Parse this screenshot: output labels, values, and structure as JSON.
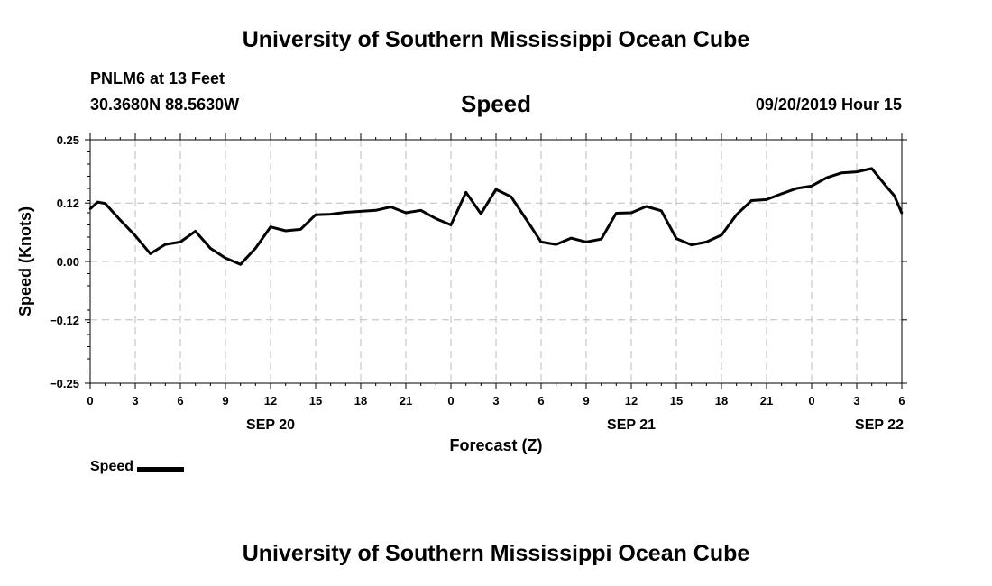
{
  "header": {
    "title": "University of Southern Mississippi Ocean Cube",
    "station": "PNLM6 at 13 Feet",
    "coords": "30.3680N 88.5630W",
    "variable": "Speed",
    "datetime": "09/20/2019 Hour 15"
  },
  "footer": {
    "title": "University of Southern Mississippi Ocean Cube"
  },
  "legend": {
    "label": "Speed"
  },
  "chart_data": {
    "type": "line",
    "title": "Speed",
    "xlabel": "Forecast (Z)",
    "ylabel": "Speed (Knots)",
    "ylim": [
      -0.25,
      0.25
    ],
    "xlim": [
      0,
      54
    ],
    "y_ticks": [
      0.25,
      0.12,
      0.0,
      -0.12,
      -0.25
    ],
    "y_tick_labels": [
      "0.25",
      "0.12",
      "0.00",
      "−0.12",
      "−0.25"
    ],
    "x_ticks": [
      0,
      3,
      6,
      9,
      12,
      15,
      18,
      21,
      24,
      27,
      30,
      33,
      36,
      39,
      42,
      45,
      48,
      51,
      54
    ],
    "x_tick_labels": [
      "0",
      "3",
      "6",
      "9",
      "12",
      "15",
      "18",
      "21",
      "0",
      "3",
      "6",
      "9",
      "12",
      "15",
      "18",
      "21",
      "0",
      "3",
      "6"
    ],
    "date_labels": [
      {
        "at": 12,
        "text": "SEP 20"
      },
      {
        "at": 36,
        "text": "SEP 21"
      },
      {
        "at": 52.5,
        "text": "SEP 22"
      }
    ],
    "grid": true,
    "legend_position": "bottom-left",
    "series": [
      {
        "name": "Speed",
        "color": "#000000",
        "x": [
          0,
          0.5,
          1,
          2,
          3,
          4,
          5,
          6,
          7,
          8,
          9,
          10,
          11,
          12,
          13,
          14,
          15,
          16,
          17,
          18,
          19,
          20,
          21,
          22,
          23,
          24,
          25,
          26,
          27,
          28,
          29,
          30,
          31,
          32,
          33,
          34,
          35,
          36,
          37,
          38,
          39,
          40,
          41,
          42,
          43,
          44,
          45,
          46,
          47,
          48,
          49,
          50,
          51,
          52,
          53,
          53.5,
          54
        ],
        "values": [
          0.108,
          0.122,
          0.119,
          0.085,
          0.053,
          0.016,
          0.035,
          0.04,
          0.062,
          0.027,
          0.007,
          -0.006,
          0.027,
          0.071,
          0.063,
          0.066,
          0.096,
          0.097,
          0.101,
          0.103,
          0.105,
          0.112,
          0.1,
          0.105,
          0.088,
          0.075,
          0.142,
          0.098,
          0.148,
          0.133,
          0.087,
          0.04,
          0.035,
          0.048,
          0.04,
          0.046,
          0.099,
          0.1,
          0.113,
          0.104,
          0.047,
          0.034,
          0.04,
          0.054,
          0.096,
          0.125,
          0.127,
          0.139,
          0.15,
          0.155,
          0.172,
          0.182,
          0.184,
          0.191,
          0.153,
          0.135,
          0.099
        ]
      }
    ]
  }
}
